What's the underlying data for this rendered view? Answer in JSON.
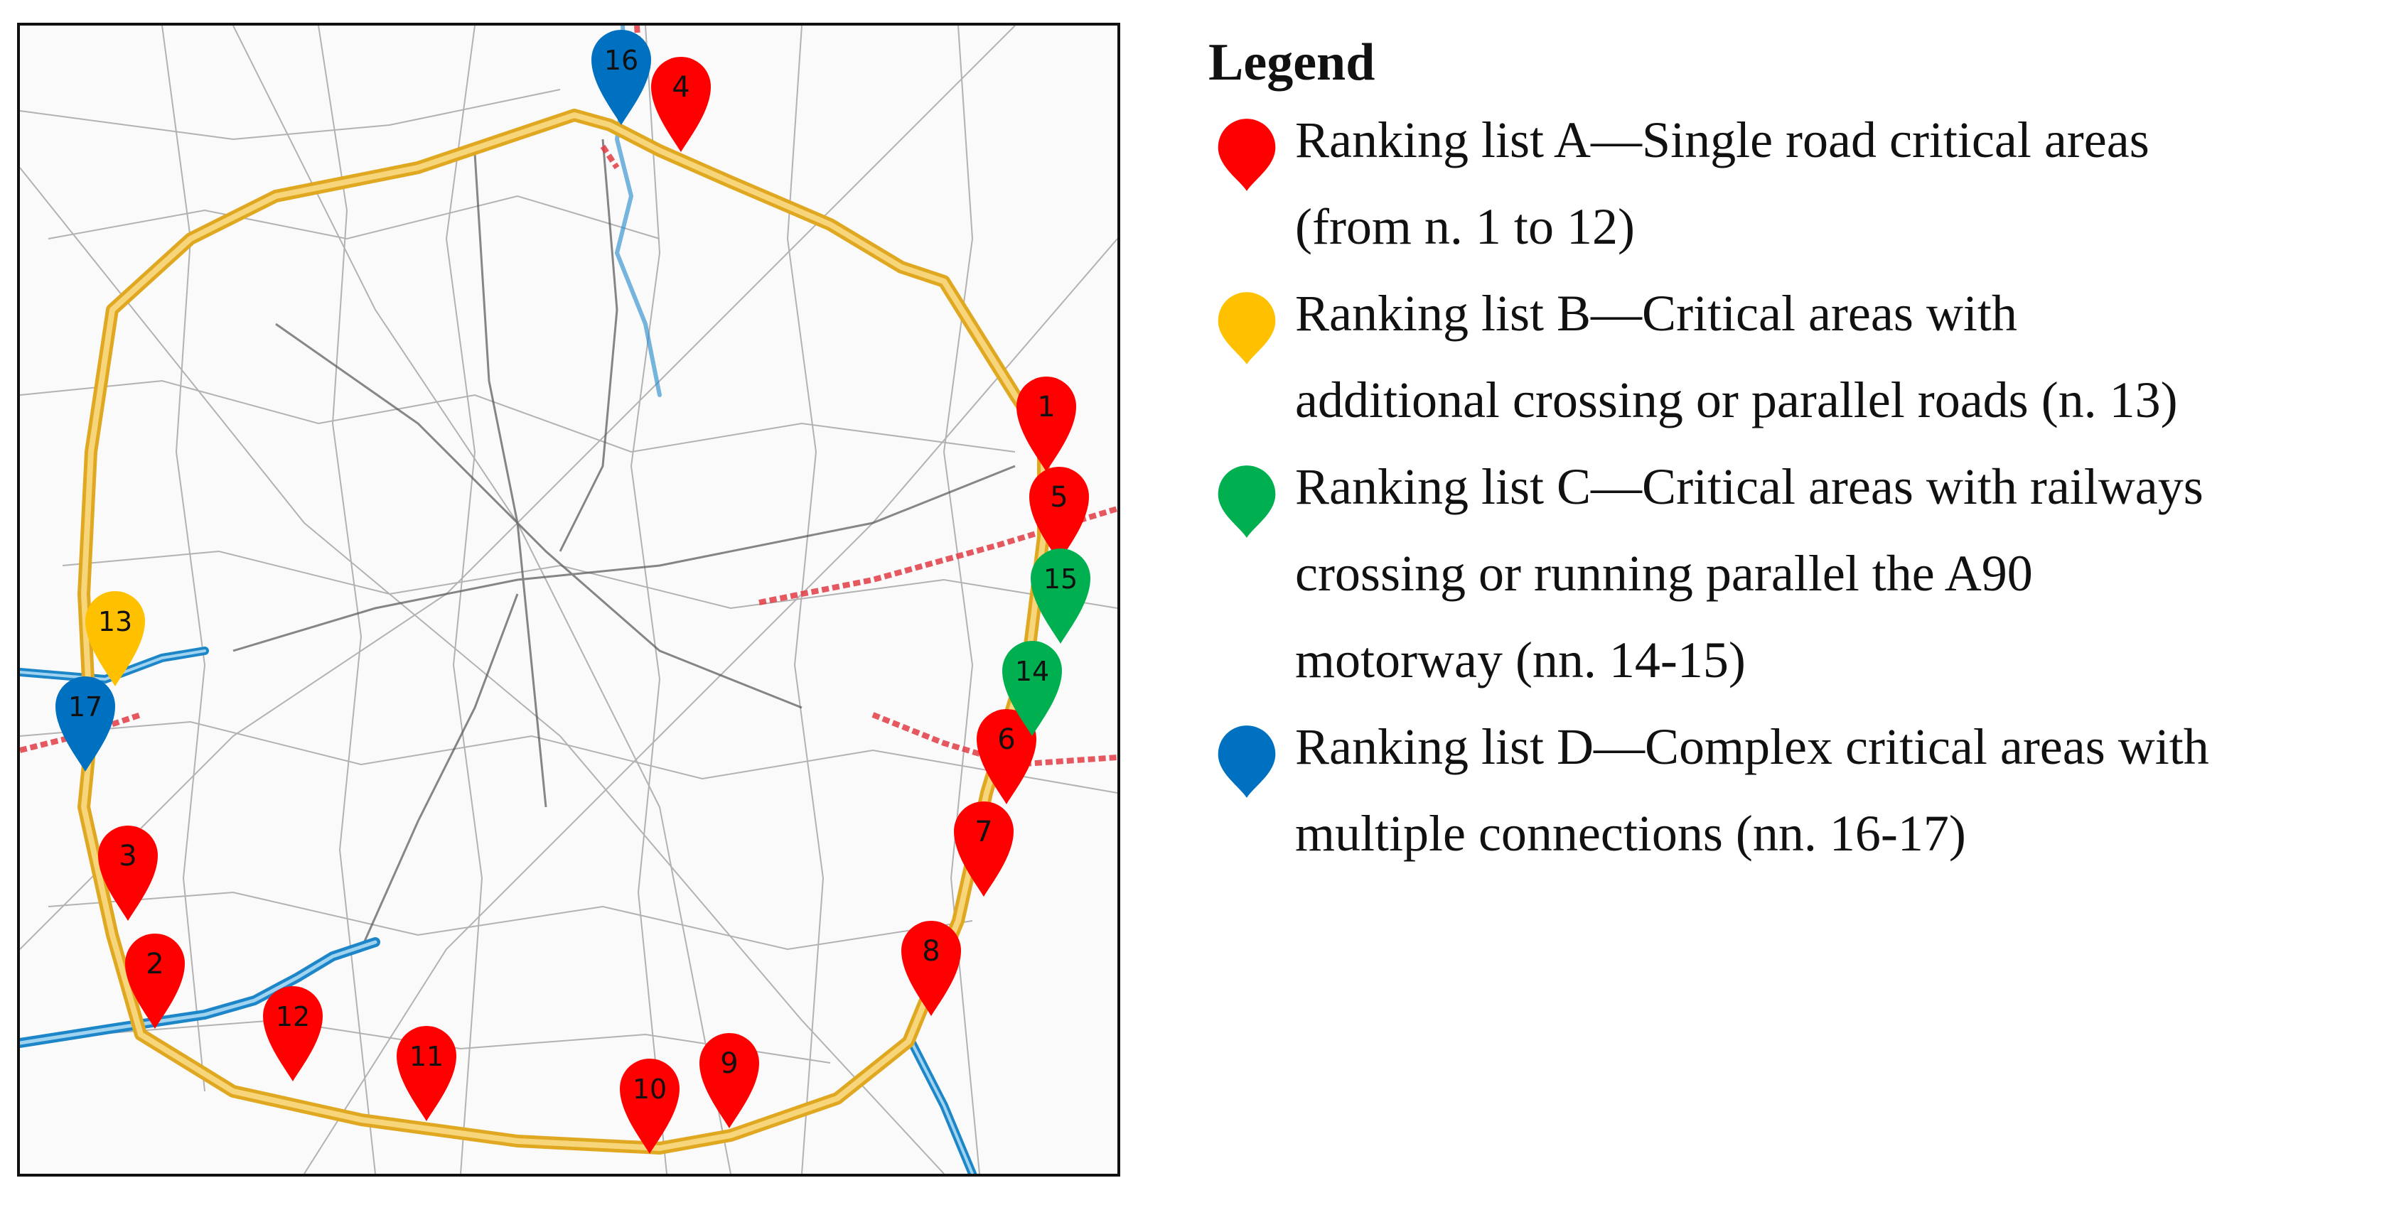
{
  "colors": {
    "ring_road": "#f5c243",
    "river": "#1c86c8",
    "railway": "#e23b44",
    "category_a": "#ff0000",
    "category_b": "#ffc000",
    "category_c": "#00b050",
    "category_d": "#0070c0"
  },
  "legend": {
    "title": "Legend",
    "items": [
      {
        "category": "A",
        "color": "#ff0000",
        "line1": "Ranking list A—Single road critical areas",
        "line2": "(from n. 1 to 12)"
      },
      {
        "category": "B",
        "color": "#ffc000",
        "line1": "Ranking list B—Critical areas with",
        "line2": "additional crossing or parallel roads (n. 13)"
      },
      {
        "category": "C",
        "color": "#00b050",
        "line1": "Ranking list C—Critical areas with railways",
        "line2": "crossing or running parallel the A90",
        "line3": "motorway (nn. 14-15)"
      },
      {
        "category": "D",
        "color": "#0070c0",
        "line1": "Ranking list D—Complex critical areas with",
        "line2": "multiple connections (nn. 16-17)"
      }
    ]
  },
  "markers": [
    {
      "label": "1",
      "category": "A"
    },
    {
      "label": "2",
      "category": "A"
    },
    {
      "label": "3",
      "category": "A"
    },
    {
      "label": "4",
      "category": "A"
    },
    {
      "label": "5",
      "category": "A"
    },
    {
      "label": "6",
      "category": "A"
    },
    {
      "label": "7",
      "category": "A"
    },
    {
      "label": "8",
      "category": "A"
    },
    {
      "label": "9",
      "category": "A"
    },
    {
      "label": "10",
      "category": "A"
    },
    {
      "label": "11",
      "category": "A"
    },
    {
      "label": "12",
      "category": "A"
    },
    {
      "label": "13",
      "category": "B"
    },
    {
      "label": "14",
      "category": "C"
    },
    {
      "label": "15",
      "category": "C"
    },
    {
      "label": "16",
      "category": "D"
    },
    {
      "label": "17",
      "category": "D"
    }
  ]
}
